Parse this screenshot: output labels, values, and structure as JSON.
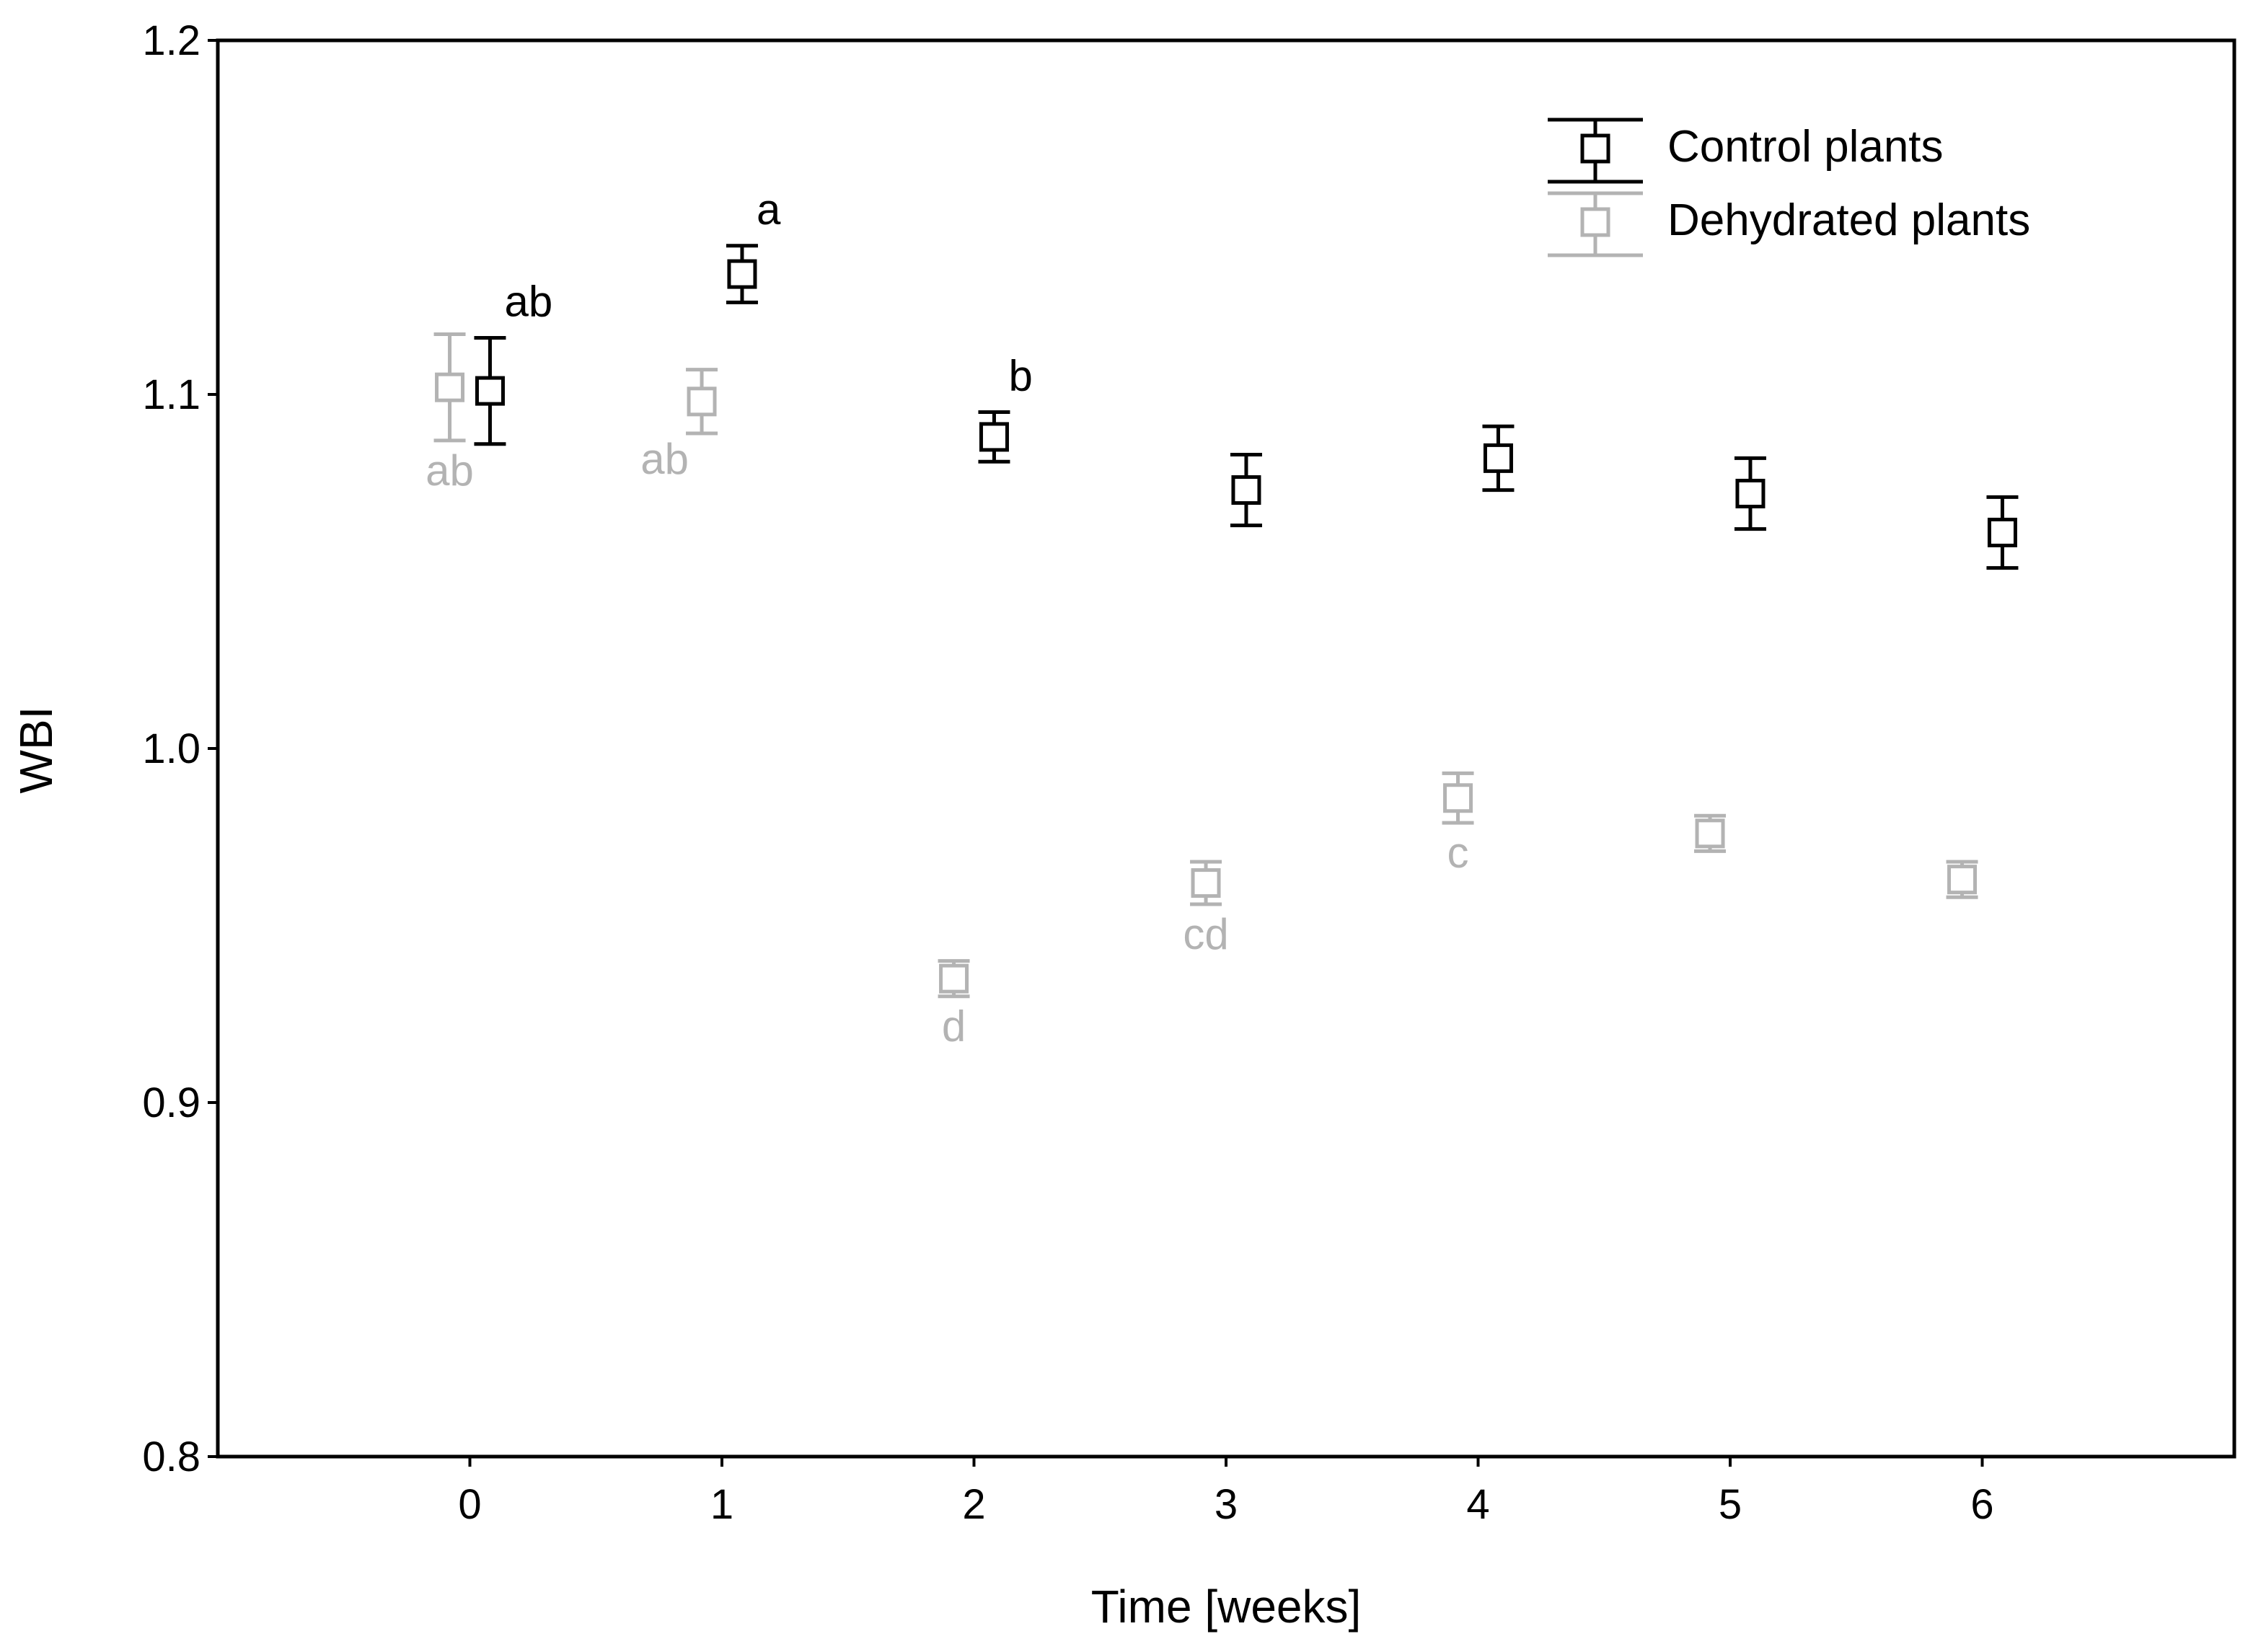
{
  "chart_data": {
    "type": "scatter",
    "xlabel": "Time [weeks]",
    "ylabel": "WBI",
    "x": [
      0,
      1,
      2,
      3,
      4,
      5,
      6
    ],
    "xticks": [
      "0",
      "1",
      "2",
      "3",
      "4",
      "5",
      "6"
    ],
    "xlim": [
      -1,
      7
    ],
    "ylim": [
      0.8,
      1.2
    ],
    "yticks": [
      "0.8",
      "0.9",
      "1.0",
      "1.1",
      "1.2"
    ],
    "ytick_values": [
      0.8,
      0.9,
      1.0,
      1.1,
      1.2
    ],
    "legend_position": "top-right",
    "grid": false,
    "series": [
      {
        "name": "Control plants",
        "color": "#000000",
        "marker": "square",
        "x_offset": 0.08,
        "values": [
          1.101,
          1.134,
          1.088,
          1.073,
          1.082,
          1.072,
          1.061
        ],
        "errors": [
          0.015,
          0.008,
          0.007,
          0.01,
          0.009,
          0.01,
          0.01
        ],
        "letters": [
          "ab",
          "a",
          "b",
          "",
          "",
          "",
          ""
        ],
        "letter_side": [
          "above-right",
          "above-right",
          "above-right",
          "",
          "",
          "",
          ""
        ]
      },
      {
        "name": "Dehydrated plants",
        "color": "#b3b3b3",
        "marker": "square",
        "x_offset": -0.08,
        "values": [
          1.102,
          1.098,
          0.935,
          0.962,
          0.986,
          0.976,
          0.963
        ],
        "errors": [
          0.015,
          0.009,
          0.005,
          0.006,
          0.007,
          0.005,
          0.005
        ],
        "letters": [
          "ab",
          "ab",
          "d",
          "cd",
          "c",
          "",
          ""
        ],
        "letter_side": [
          "below",
          "below-left",
          "below",
          "below",
          "below",
          "",
          ""
        ]
      }
    ]
  }
}
